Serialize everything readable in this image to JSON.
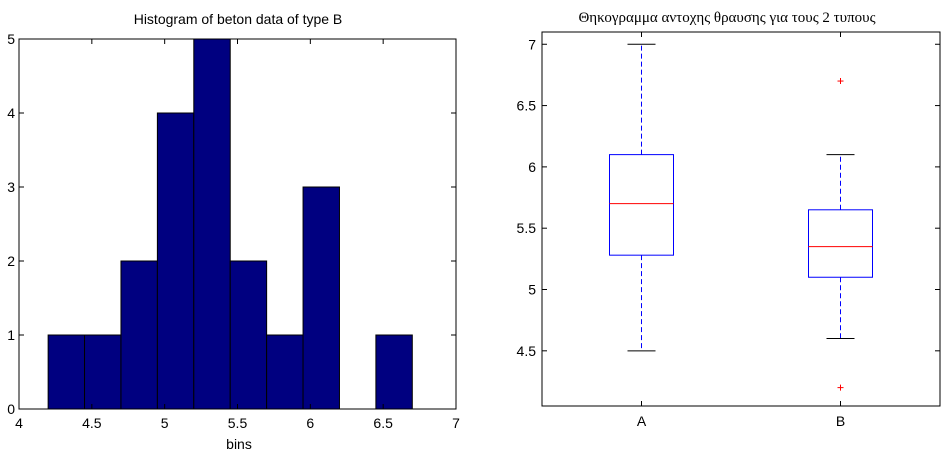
{
  "chart_data": [
    {
      "type": "bar",
      "title": "Histogram of beton data of type B",
      "xlabel": "bins",
      "ylabel": "",
      "xlim": [
        4,
        7
      ],
      "ylim": [
        0,
        5
      ],
      "xticks": [
        "4",
        "4.5",
        "5",
        "5.5",
        "6",
        "6.5",
        "7"
      ],
      "yticks": [
        "0",
        "1",
        "2",
        "3",
        "4",
        "5"
      ],
      "bar_color": "#000080",
      "bins": [
        {
          "from": 4.2,
          "to": 4.45,
          "count": 1
        },
        {
          "from": 4.45,
          "to": 4.7,
          "count": 1
        },
        {
          "from": 4.7,
          "to": 4.95,
          "count": 2
        },
        {
          "from": 4.95,
          "to": 5.2,
          "count": 4
        },
        {
          "from": 5.2,
          "to": 5.45,
          "count": 5
        },
        {
          "from": 5.45,
          "to": 5.7,
          "count": 2
        },
        {
          "from": 5.7,
          "to": 5.95,
          "count": 1
        },
        {
          "from": 5.95,
          "to": 6.2,
          "count": 3
        },
        {
          "from": 6.2,
          "to": 6.45,
          "count": 0
        },
        {
          "from": 6.45,
          "to": 6.7,
          "count": 1
        }
      ]
    },
    {
      "type": "boxplot",
      "title": "Θηκογραμμα αντοχης θραυσης για τους 2 τυπους",
      "categories": [
        "A",
        "B"
      ],
      "ylim": [
        4.05,
        7.1
      ],
      "yticks": [
        "4.5",
        "5",
        "5.5",
        "6",
        "6.5",
        "7"
      ],
      "box_color": "#0000ff",
      "median_color": "#ff0000",
      "outlier_color": "#ff0000",
      "boxes": [
        {
          "name": "A",
          "whisker_low": 4.5,
          "q1": 5.28,
          "median": 5.7,
          "q3": 6.1,
          "whisker_high": 7.0,
          "outliers": []
        },
        {
          "name": "B",
          "whisker_low": 4.6,
          "q1": 5.1,
          "median": 5.35,
          "q3": 5.65,
          "whisker_high": 6.1,
          "outliers": [
            6.7,
            4.2
          ]
        }
      ]
    }
  ]
}
